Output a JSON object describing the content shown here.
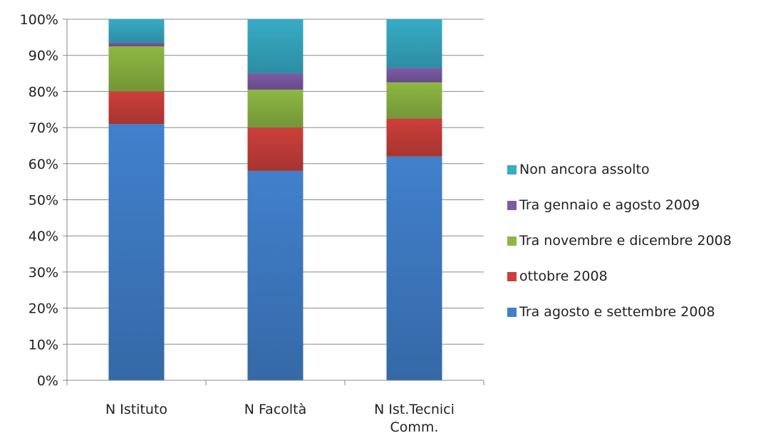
{
  "chart_data": {
    "type": "bar",
    "stacked": true,
    "percent": true,
    "categories": [
      "N Istituto",
      "N Facoltà",
      "N Ist.Tecnici Comm."
    ],
    "ylim": [
      0,
      100
    ],
    "yticks": [
      "0%",
      "10%",
      "20%",
      "30%",
      "40%",
      "50%",
      "60%",
      "70%",
      "80%",
      "90%",
      "100%"
    ],
    "grid": true,
    "legend_position": "right",
    "series": [
      {
        "name": "Tra agosto e settembre 2008",
        "color": "#4180CC",
        "values": [
          71,
          58,
          62
        ]
      },
      {
        "name": "ottobre 2008",
        "color": "#CC3F3B",
        "values": [
          9,
          12,
          10.5
        ]
      },
      {
        "name": "Tra novembre e dicembre 2008",
        "color": "#8DB743",
        "values": [
          12.5,
          10.5,
          10
        ]
      },
      {
        "name": "Tra gennaio e agosto 2009",
        "color": "#7D5AA6",
        "values": [
          1,
          4.5,
          4
        ]
      },
      {
        "name": "Non ancora assolto",
        "color": "#37ACC6",
        "values": [
          6.5,
          15,
          13.5
        ]
      }
    ]
  }
}
